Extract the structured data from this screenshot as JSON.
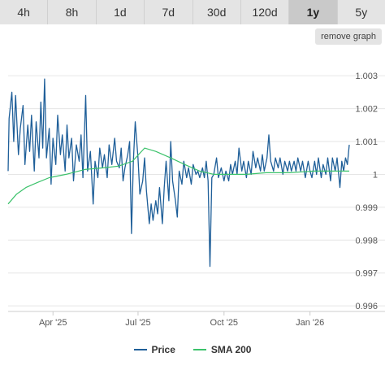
{
  "tabs": [
    "4h",
    "8h",
    "1d",
    "7d",
    "30d",
    "120d",
    "1y",
    "5y"
  ],
  "active_tab": "1y",
  "remove_graph_label": "remove graph",
  "colors": {
    "price": "#1f5f99",
    "sma": "#3cc26b",
    "grid": "#e6e6e6"
  },
  "chart_data": {
    "type": "line",
    "x_labels": [
      {
        "label": "Apr '25",
        "date": "2025-04-01"
      },
      {
        "label": "Jul '25",
        "date": "2025-07-01"
      },
      {
        "label": "Oct '25",
        "date": "2025-10-01"
      },
      {
        "label": "Jan '26",
        "date": "2026-01-01"
      }
    ],
    "xlim": [
      "2025-02-12",
      "2026-02-12"
    ],
    "y_ticks": [
      {
        "label": "1.003",
        "value": 1.003
      },
      {
        "label": "1.002",
        "value": 1.002
      },
      {
        "label": "1.001",
        "value": 1.001
      },
      {
        "label": "1",
        "value": 1.0
      },
      {
        "label": "0.999",
        "value": 0.999
      },
      {
        "label": "0.998",
        "value": 0.998
      },
      {
        "label": "0.997",
        "value": 0.997
      },
      {
        "label": "0.996",
        "value": 0.996
      }
    ],
    "ylim": [
      0.99583,
      1.00392
    ],
    "grid": true,
    "legend_position": "bottom",
    "series": [
      {
        "name": "Price",
        "points": [
          [
            "2025-02-12",
            1.0001
          ],
          [
            "2025-02-13",
            1.0017
          ],
          [
            "2025-02-16",
            1.0025
          ],
          [
            "2025-02-18",
            1.001
          ],
          [
            "2025-02-20",
            1.0024
          ],
          [
            "2025-02-23",
            1.0006
          ],
          [
            "2025-02-25",
            1.0014
          ],
          [
            "2025-02-28",
            1.0021
          ],
          [
            "2025-03-02",
            1.0003
          ],
          [
            "2025-03-05",
            1.0015
          ],
          [
            "2025-03-07",
            1.0007
          ],
          [
            "2025-03-09",
            1.0018
          ],
          [
            "2025-03-12",
            1.0001
          ],
          [
            "2025-03-14",
            1.0016
          ],
          [
            "2025-03-17",
            1.0005
          ],
          [
            "2025-03-19",
            1.0022
          ],
          [
            "2025-03-21",
            1.0008
          ],
          [
            "2025-03-23",
            1.0029
          ],
          [
            "2025-03-25",
            1.0005
          ],
          [
            "2025-03-28",
            1.0014
          ],
          [
            "2025-03-30",
            0.9997
          ],
          [
            "2025-04-01",
            1.0011
          ],
          [
            "2025-04-04",
            1.0003
          ],
          [
            "2025-04-06",
            1.0018
          ],
          [
            "2025-04-09",
            1.0006
          ],
          [
            "2025-04-11",
            1.0012
          ],
          [
            "2025-04-14",
            1.0001
          ],
          [
            "2025-04-16",
            1.0015
          ],
          [
            "2025-04-18",
            1.0005
          ],
          [
            "2025-04-21",
            1.0011
          ],
          [
            "2025-04-23",
            0.9998
          ],
          [
            "2025-04-26",
            1.0009
          ],
          [
            "2025-04-29",
            1.0004
          ],
          [
            "2025-05-01",
            1.0012
          ],
          [
            "2025-05-03",
            0.9999
          ],
          [
            "2025-05-06",
            1.0024
          ],
          [
            "2025-05-08",
            1.0001
          ],
          [
            "2025-05-11",
            1.0007
          ],
          [
            "2025-05-14",
            0.9991
          ],
          [
            "2025-05-16",
            1.0004
          ],
          [
            "2025-05-19",
            0.9999
          ],
          [
            "2025-05-21",
            1.0008
          ],
          [
            "2025-05-24",
            1.0002
          ],
          [
            "2025-05-26",
            1.0006
          ],
          [
            "2025-05-29",
            0.9999
          ],
          [
            "2025-05-31",
            1.0009
          ],
          [
            "2025-06-03",
            1.0003
          ],
          [
            "2025-06-06",
            1.0011
          ],
          [
            "2025-06-08",
            1.0004
          ],
          [
            "2025-06-11",
            1.0002
          ],
          [
            "2025-06-13",
            1.0008
          ],
          [
            "2025-06-15",
            0.9998
          ],
          [
            "2025-06-17",
            1.0002
          ],
          [
            "2025-06-20",
            1.0006
          ],
          [
            "2025-06-22",
            1.001
          ],
          [
            "2025-06-24",
            0.9982
          ],
          [
            "2025-06-26",
            1.0004
          ],
          [
            "2025-06-28",
            1.0016
          ],
          [
            "2025-07-01",
            1.0005
          ],
          [
            "2025-07-03",
            0.9994
          ],
          [
            "2025-07-06",
            0.9998
          ],
          [
            "2025-07-08",
            1.0005
          ],
          [
            "2025-07-10",
            0.9995
          ],
          [
            "2025-07-13",
            0.9985
          ],
          [
            "2025-07-15",
            0.9991
          ],
          [
            "2025-07-17",
            0.9986
          ],
          [
            "2025-07-20",
            0.9992
          ],
          [
            "2025-07-22",
            0.9988
          ],
          [
            "2025-07-24",
            0.9996
          ],
          [
            "2025-07-27",
            0.9985
          ],
          [
            "2025-07-29",
            0.9996
          ],
          [
            "2025-07-31",
            1.0004
          ],
          [
            "2025-08-03",
            0.9992
          ],
          [
            "2025-08-05",
            1.001
          ],
          [
            "2025-08-07",
            0.9998
          ],
          [
            "2025-08-10",
            0.9992
          ],
          [
            "2025-08-12",
            0.9987
          ],
          [
            "2025-08-14",
            1.0001
          ],
          [
            "2025-08-17",
            0.9997
          ],
          [
            "2025-08-19",
            1.0004
          ],
          [
            "2025-08-22",
            0.9999
          ],
          [
            "2025-08-24",
            1.0002
          ],
          [
            "2025-08-27",
            0.9997
          ],
          [
            "2025-08-29",
            1.0003
          ],
          [
            "2025-09-01",
            1.0
          ],
          [
            "2025-09-03",
            1.0001
          ],
          [
            "2025-09-05",
            0.9999
          ],
          [
            "2025-09-08",
            1.0002
          ],
          [
            "2025-09-10",
            0.9999
          ],
          [
            "2025-09-12",
            1.0004
          ],
          [
            "2025-09-14",
            0.9998
          ],
          [
            "2025-09-16",
            0.9972
          ],
          [
            "2025-09-18",
            0.9999
          ],
          [
            "2025-09-20",
            1.0
          ],
          [
            "2025-09-23",
            1.0005
          ],
          [
            "2025-09-25",
            0.9999
          ],
          [
            "2025-09-28",
            1.0002
          ],
          [
            "2025-10-01",
            0.9998
          ],
          [
            "2025-10-03",
            1.0001
          ],
          [
            "2025-10-06",
            0.9998
          ],
          [
            "2025-10-08",
            1.0003
          ],
          [
            "2025-10-10",
            1.0
          ],
          [
            "2025-10-13",
            1.0004
          ],
          [
            "2025-10-15",
            1.0
          ],
          [
            "2025-10-17",
            1.0008
          ],
          [
            "2025-10-20",
            1.0001
          ],
          [
            "2025-10-22",
            1.0004
          ],
          [
            "2025-10-25",
            0.9999
          ],
          [
            "2025-10-27",
            1.0004
          ],
          [
            "2025-10-30",
            1.0
          ],
          [
            "2025-11-01",
            1.0007
          ],
          [
            "2025-11-04",
            1.0002
          ],
          [
            "2025-11-06",
            1.0005
          ],
          [
            "2025-11-09",
            1.0001
          ],
          [
            "2025-11-11",
            1.0006
          ],
          [
            "2025-11-13",
            1.0001
          ],
          [
            "2025-11-16",
            1.0005
          ],
          [
            "2025-11-18",
            1.0012
          ],
          [
            "2025-11-20",
            1.0004
          ],
          [
            "2025-11-23",
            1.0001
          ],
          [
            "2025-11-25",
            1.0005
          ],
          [
            "2025-11-28",
            1.0002
          ],
          [
            "2025-11-30",
            1.0005
          ],
          [
            "2025-12-03",
            1.0
          ],
          [
            "2025-12-05",
            1.0004
          ],
          [
            "2025-12-08",
            1.0001
          ],
          [
            "2025-12-10",
            1.0004
          ],
          [
            "2025-12-12",
            1.0001
          ],
          [
            "2025-12-15",
            1.0004
          ],
          [
            "2025-12-17",
            1.0001
          ],
          [
            "2025-12-19",
            1.0005
          ],
          [
            "2025-12-22",
            1.0001
          ],
          [
            "2025-12-24",
            1.0004
          ],
          [
            "2025-12-27",
            0.9999
          ],
          [
            "2025-12-30",
            1.0004
          ],
          [
            "2026-01-01",
            1.0001
          ],
          [
            "2026-01-03",
            0.9999
          ],
          [
            "2026-01-06",
            1.0004
          ],
          [
            "2026-01-08",
            1.0
          ],
          [
            "2026-01-10",
            1.0005
          ],
          [
            "2026-01-13",
            0.9999
          ],
          [
            "2026-01-15",
            1.0003
          ],
          [
            "2026-01-18",
            1.0
          ],
          [
            "2026-01-20",
            1.0005
          ],
          [
            "2026-01-23",
            0.9998
          ],
          [
            "2026-01-25",
            1.0005
          ],
          [
            "2026-01-28",
            1.0001
          ],
          [
            "2026-01-30",
            1.0005
          ],
          [
            "2026-02-02",
            0.9996
          ],
          [
            "2026-02-04",
            1.0004
          ],
          [
            "2026-02-06",
            1.0001
          ],
          [
            "2026-02-08",
            1.0005
          ],
          [
            "2026-02-10",
            1.0003
          ],
          [
            "2026-02-12",
            1.0009
          ]
        ]
      },
      {
        "name": "SMA 200",
        "points": [
          [
            "2025-02-12",
            0.9991
          ],
          [
            "2025-02-21",
            0.9994
          ],
          [
            "2025-03-03",
            0.9996
          ],
          [
            "2025-03-15",
            0.99975
          ],
          [
            "2025-03-28",
            0.9999
          ],
          [
            "2025-04-15",
            1.0
          ],
          [
            "2025-05-05",
            1.00015
          ],
          [
            "2025-05-25",
            1.0002
          ],
          [
            "2025-06-10",
            1.00025
          ],
          [
            "2025-06-25",
            1.0004
          ],
          [
            "2025-07-08",
            1.0008
          ],
          [
            "2025-07-20",
            1.0007
          ],
          [
            "2025-08-05",
            1.0005
          ],
          [
            "2025-08-20",
            1.0003
          ],
          [
            "2025-09-05",
            1.0001
          ],
          [
            "2025-09-20",
            1.0
          ],
          [
            "2025-10-05",
            1.0
          ],
          [
            "2025-10-25",
            1.0
          ],
          [
            "2025-11-15",
            1.00005
          ],
          [
            "2025-12-10",
            1.00005
          ],
          [
            "2026-01-05",
            1.0001
          ],
          [
            "2026-01-25",
            1.0001
          ],
          [
            "2026-02-12",
            1.0001
          ]
        ]
      }
    ]
  }
}
